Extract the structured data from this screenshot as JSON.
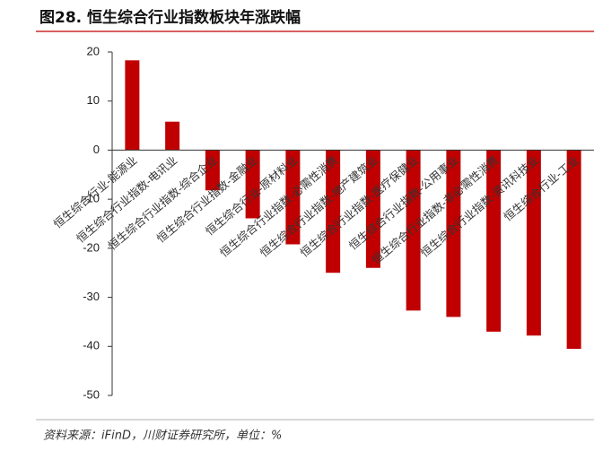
{
  "chart_data": {
    "type": "bar",
    "title": "图28. 恒生综合行业指数板块年涨跌幅",
    "source": "资料来源：iFinD，川财证券研究所，单位：%",
    "categories": [
      "恒生综合行业-能源业",
      "恒生综合行业指数-电讯业",
      "恒生综合行业指数-综合企业",
      "恒生综合行业指数-金融业",
      "恒生综合行业-原材料业",
      "恒生综合行业指数-必需性消费",
      "恒生综合行业指数-地产建筑业",
      "恒生综合行业指数-医疗保健业",
      "恒生综合行业指数-公用事业",
      "恒生综合行业指数-非必需性消费",
      "恒生综合行业指数-资讯科技业",
      "恒生综合行业-工业"
    ],
    "values": [
      18.3,
      5.8,
      -8.2,
      -13.9,
      -19.2,
      -25,
      -24,
      -32.7,
      -34,
      -37,
      -37.8,
      -40.5
    ],
    "color": "#c00000",
    "ylim": [
      -50,
      20
    ],
    "yticks": [
      20,
      10,
      0,
      -10,
      -20,
      -30,
      -40,
      -50
    ]
  }
}
